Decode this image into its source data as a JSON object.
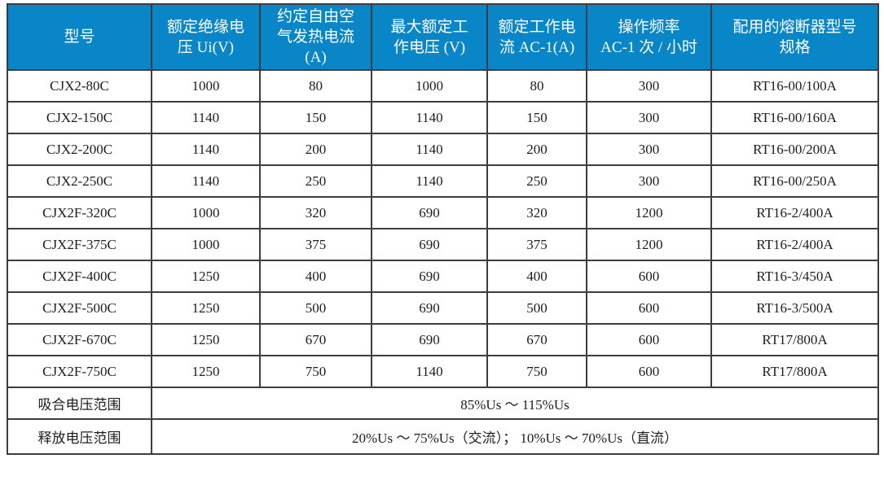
{
  "colors": {
    "header_background": "#0886C8",
    "header_text": "#ffffff",
    "border_inner": "#3d3d3d",
    "border_outer": "#161616",
    "body_text": "#1d1d1d",
    "page_background": "#ffffff"
  },
  "table": {
    "headers": [
      [
        "型号"
      ],
      [
        "额定绝缘电",
        "压 Ui(V)"
      ],
      [
        "约定自由空",
        "气发热电流",
        "(A)"
      ],
      [
        "最大额定工",
        "作电压 (V)"
      ],
      [
        "额定工作电",
        "流 AC-1(A)"
      ],
      [
        "操作频率",
        "AC-1 次 / 小时"
      ],
      [
        "配用的熔断器型号",
        "规格"
      ]
    ],
    "rows": [
      [
        "CJX2-80C",
        "1000",
        "80",
        "1000",
        "80",
        "300",
        "RT16-00/100A"
      ],
      [
        "CJX2-150C",
        "1140",
        "150",
        "1140",
        "150",
        "300",
        "RT16-00/160A"
      ],
      [
        "CJX2-200C",
        "1140",
        "200",
        "1140",
        "200",
        "300",
        "RT16-00/200A"
      ],
      [
        "CJX2-250C",
        "1140",
        "250",
        "1140",
        "250",
        "300",
        "RT16-00/250A"
      ],
      [
        "CJX2F-320C",
        "1000",
        "320",
        "690",
        "320",
        "1200",
        "RT16-2/400A"
      ],
      [
        "CJX2F-375C",
        "1000",
        "375",
        "690",
        "375",
        "1200",
        "RT16-2/400A"
      ],
      [
        "CJX2F-400C",
        "1250",
        "400",
        "690",
        "400",
        "600",
        "RT16-3/450A"
      ],
      [
        "CJX2F-500C",
        "1250",
        "500",
        "690",
        "500",
        "600",
        "RT16-3/500A"
      ],
      [
        "CJX2F-670C",
        "1250",
        "670",
        "690",
        "670",
        "600",
        "RT17/800A"
      ],
      [
        "CJX2F-750C",
        "1250",
        "750",
        "1140",
        "750",
        "600",
        "RT17/800A"
      ]
    ],
    "footer_rows": [
      {
        "label": "吸合电压范围",
        "value": "85%Us ～ 115%Us"
      },
      {
        "label": "释放电压范围",
        "value": "20%Us ～ 75%Us（交流）； 10%Us ～ 70%Us（直流）"
      }
    ]
  }
}
